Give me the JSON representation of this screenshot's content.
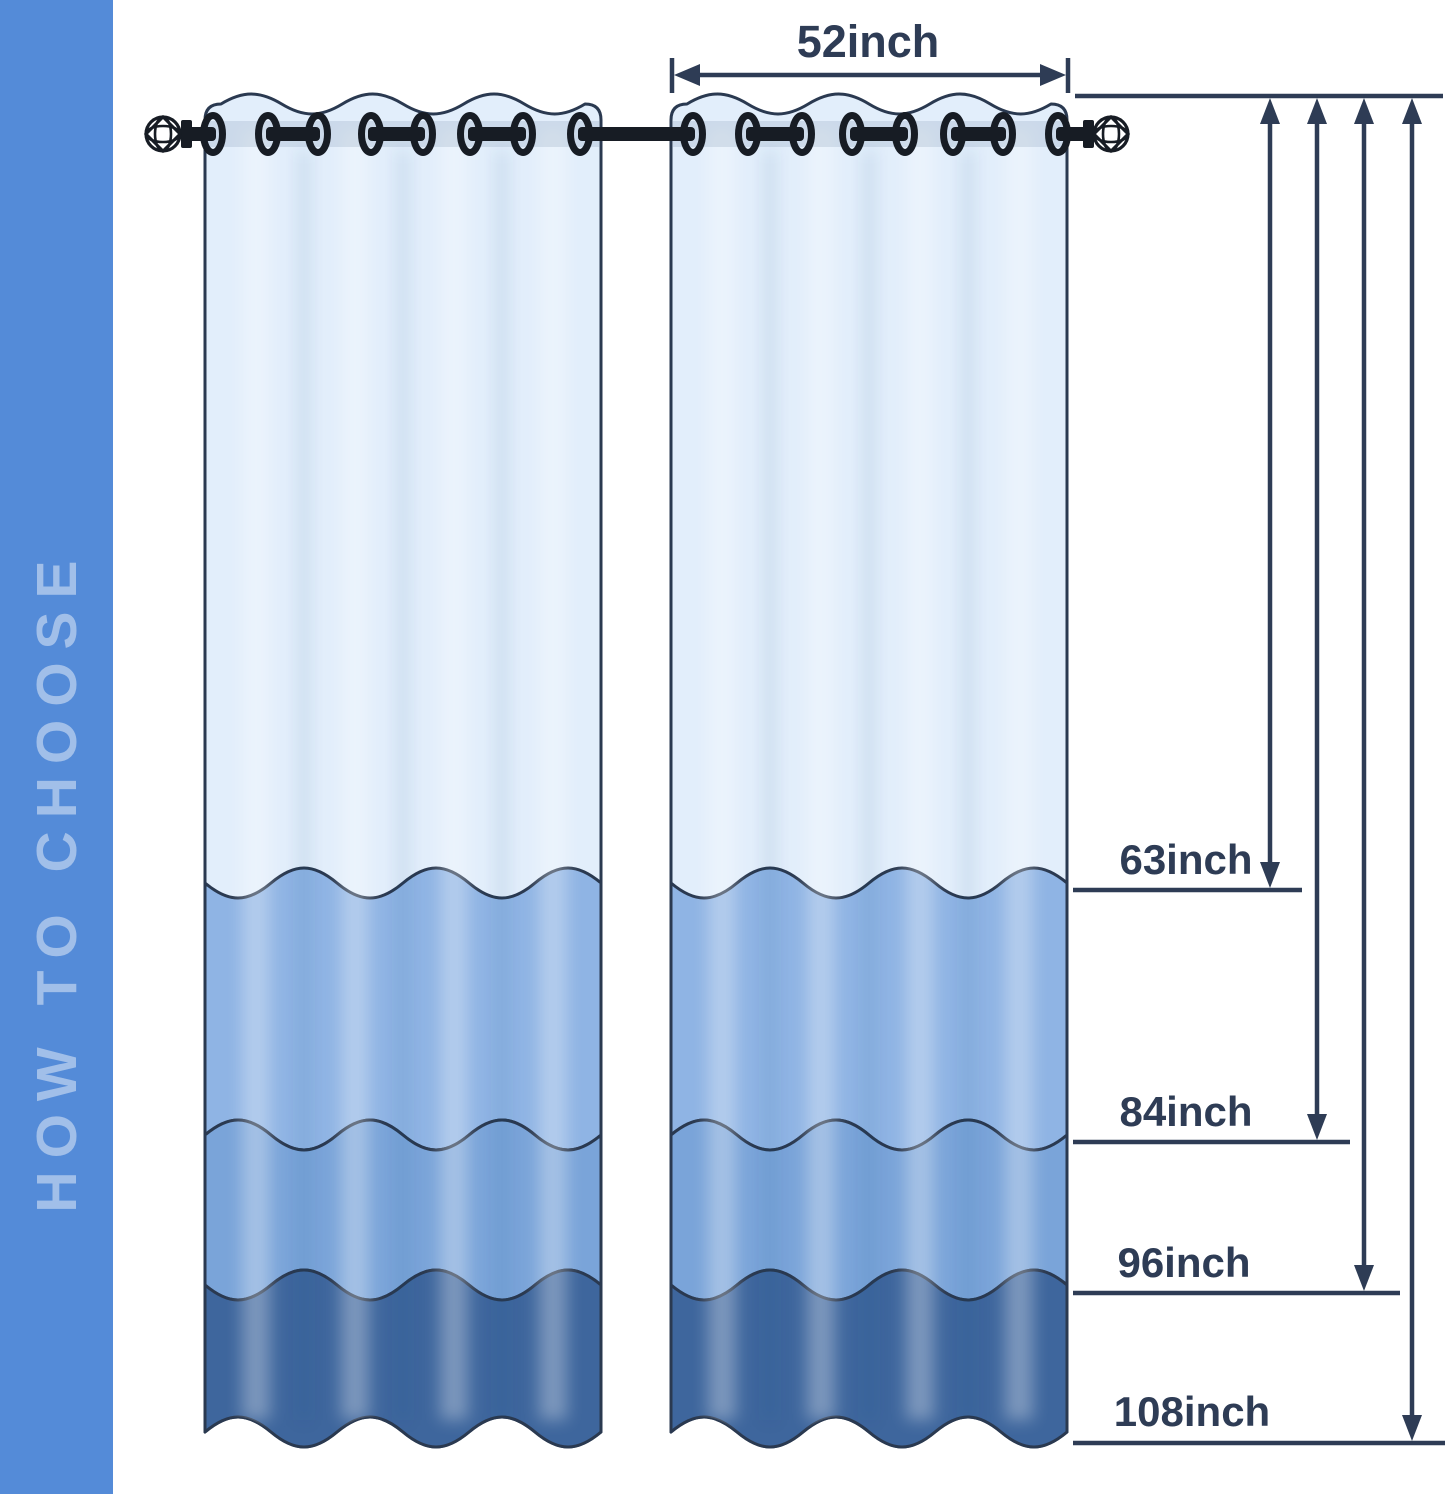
{
  "sidebar": {
    "label": "HOW TO CHOOSE"
  },
  "size_guide": {
    "width_label": "52inch",
    "length_labels": [
      "63inch",
      "84inch",
      "96inch",
      "108inch"
    ]
  },
  "icons": {
    "finial": "lattice-ball-finial-icon",
    "arrows": "double-headed-measurement-arrows"
  },
  "colors": {
    "sidebar_bg": "#548bd8",
    "sidebar_text": "rgba(255,255,255,0.45)",
    "measure": "#2e3c55",
    "outline": "#2a3950",
    "rod": "#171c24",
    "band1": "#e2eefb",
    "band2": "#8fb4e4",
    "band3": "#7aa4d9",
    "band4": "#3e669d",
    "rod_behind": "rgba(125,145,172,0.22)"
  }
}
